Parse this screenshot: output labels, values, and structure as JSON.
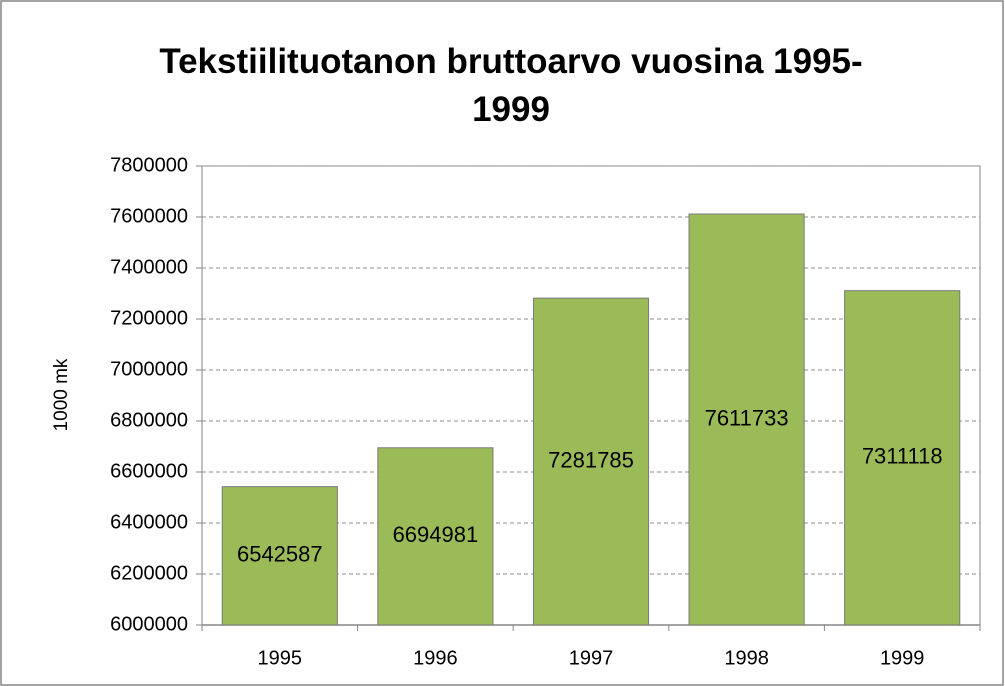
{
  "chart_data": {
    "type": "bar",
    "title": "Tekstiilituotanon bruttoarvo vuosina 1995-1999",
    "y_label": "1000 mk",
    "categories": [
      "1995",
      "1996",
      "1997",
      "1998",
      "1999"
    ],
    "values": [
      6542587,
      6694981,
      7281785,
      7611733,
      7311118
    ],
    "color": "#9bbb59",
    "ylim": [
      6000000,
      7800000
    ],
    "yticks": [
      6000000,
      6200000,
      6400000,
      6600000,
      6800000,
      7000000,
      7200000,
      7400000,
      7600000,
      7800000
    ],
    "grid": true,
    "data_labels": true
  }
}
